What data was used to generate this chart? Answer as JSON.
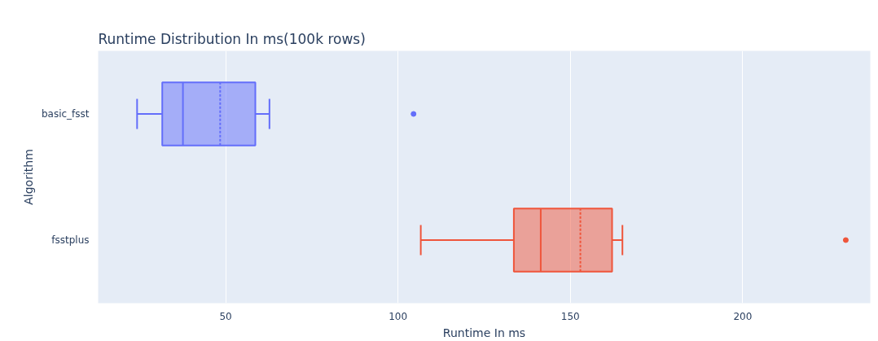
{
  "chart_data": {
    "type": "box",
    "orientation": "horizontal",
    "title": "Runtime Distribution In ms(100k rows)",
    "xlabel": "Runtime In ms",
    "ylabel": "Algorithm",
    "categories": [
      "basic_fsst",
      "fsstplus"
    ],
    "series": [
      {
        "color": "#636efa",
        "boxes": [
          {
            "low": 24.3,
            "q1": 31.6,
            "median": 37.6,
            "q3": 58.6,
            "high": 62.7,
            "mean": 48.4,
            "outliers": [
              104.5
            ]
          },
          null
        ]
      },
      {
        "color": "#ef553b",
        "boxes": [
          null,
          {
            "low": 106.6,
            "q1": 133.6,
            "median": 141.4,
            "q3": 162.1,
            "high": 165.1,
            "mean": 152.9,
            "outliers": [
              229.9
            ]
          }
        ]
      }
    ],
    "xlim": [
      13,
      237
    ],
    "xticks": [
      50,
      100,
      150,
      200
    ],
    "grid": "x"
  }
}
